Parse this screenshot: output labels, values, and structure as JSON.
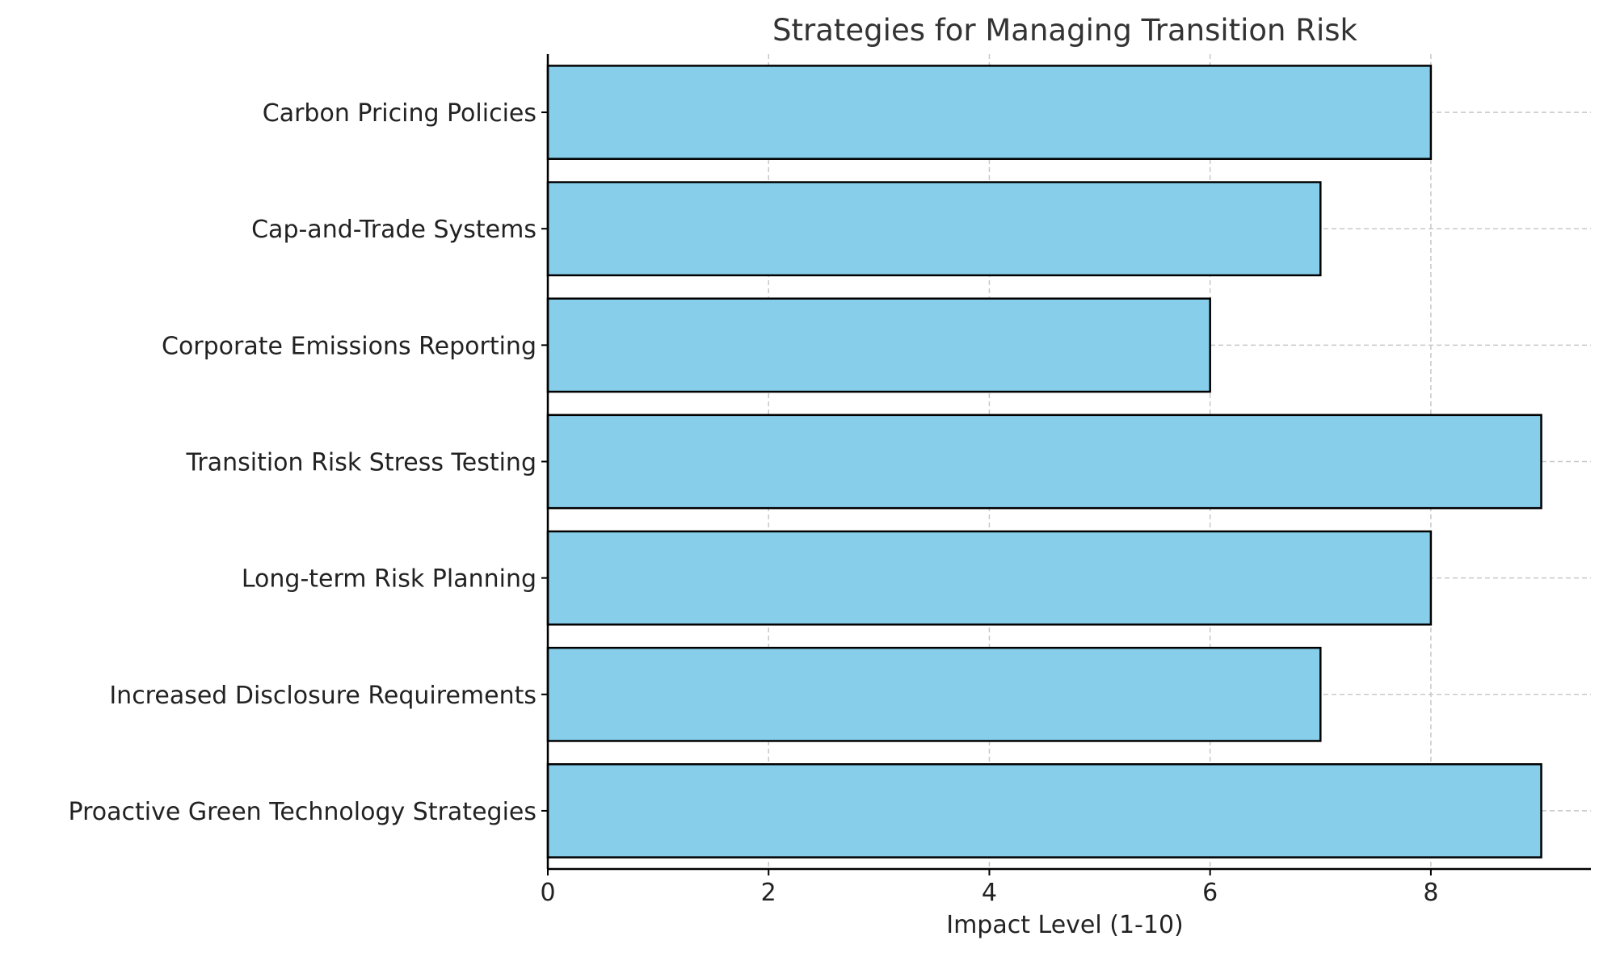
{
  "chart_data": {
    "type": "bar",
    "orientation": "horizontal",
    "title": "Strategies for Managing Transition Risk",
    "xlabel": "Impact Level (1-10)",
    "ylabel": "",
    "categories": [
      "Carbon Pricing Policies",
      "Cap-and-Trade Systems",
      "Corporate Emissions Reporting",
      "Transition Risk Stress Testing",
      "Long-term Risk Planning",
      "Increased Disclosure Requirements",
      "Proactive Green Technology Strategies"
    ],
    "values": [
      8,
      7,
      6,
      9,
      8,
      7,
      9
    ],
    "xlim": [
      0,
      9.45
    ],
    "xticks": [
      0,
      2,
      4,
      6,
      8
    ],
    "grid": true,
    "legend": "none",
    "colors": {
      "bar_fill": "#87CEEB",
      "bar_edge": "#000000",
      "grid": "#c8c8c8",
      "axis": "#000000",
      "title": "#333333",
      "text": "#222222"
    }
  }
}
